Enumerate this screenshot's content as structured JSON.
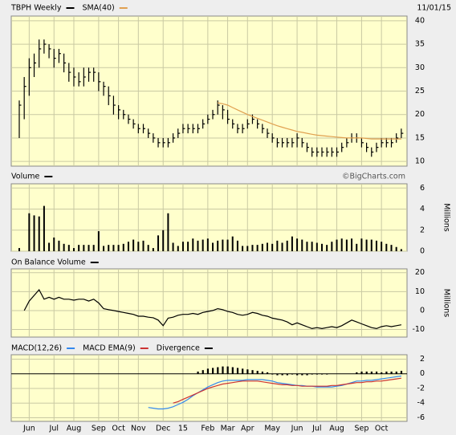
{
  "chart_data": [
    {
      "type": "ohlc",
      "date": "11/01/15",
      "ylim": [
        9,
        41
      ],
      "yticks": [
        10,
        15,
        20,
        25,
        30,
        35,
        40
      ],
      "series": [
        {
          "name": "TBPH Weekly",
          "color": "#000000",
          "high": [
            23,
            28,
            32,
            33,
            36,
            36,
            35,
            34,
            34,
            33,
            31,
            30,
            29,
            30,
            30,
            30,
            29,
            27,
            26,
            24,
            22,
            21,
            20,
            19,
            18,
            18,
            17,
            16,
            15,
            15,
            15,
            16,
            17,
            18,
            18,
            18,
            18,
            19,
            20,
            21,
            23,
            22,
            21,
            19,
            18,
            18,
            19,
            20,
            19,
            18,
            17,
            16,
            15,
            15,
            15,
            15,
            16,
            15,
            14,
            13,
            13,
            13,
            13,
            13,
            13,
            14,
            15,
            16,
            16,
            15,
            14,
            13,
            14,
            15,
            15,
            15,
            16,
            17
          ],
          "low": [
            15,
            19,
            24,
            28,
            30,
            33,
            32,
            30,
            31,
            29,
            27,
            26,
            26,
            26,
            27,
            27,
            25,
            24,
            22,
            20,
            19,
            19,
            18,
            17,
            16,
            16,
            15,
            14,
            13,
            13,
            13,
            14,
            15,
            16,
            16,
            16,
            16,
            17,
            18,
            19,
            20,
            19,
            18,
            17,
            16,
            16,
            17,
            18,
            17,
            16,
            15,
            14,
            13,
            13,
            13,
            13,
            13,
            13,
            12,
            11,
            11,
            11,
            11,
            11,
            11,
            12,
            13,
            14,
            14,
            13,
            12,
            11,
            12,
            13,
            13,
            13,
            14,
            15
          ],
          "close": [
            22,
            26,
            30,
            31,
            34,
            35,
            34,
            32,
            33,
            31,
            29,
            28,
            27,
            28,
            29,
            29,
            27,
            26,
            24,
            22,
            21,
            20,
            19,
            18,
            17,
            17,
            16,
            15,
            14,
            14,
            14,
            15,
            16,
            17,
            17,
            17,
            17,
            18,
            19,
            20,
            22,
            21,
            19,
            18,
            17,
            17,
            18,
            19,
            18,
            17,
            16,
            15,
            14,
            14,
            14,
            14,
            15,
            14,
            13,
            12,
            12,
            12,
            12,
            12,
            12,
            13,
            14,
            15,
            15,
            14,
            13,
            12,
            13,
            14,
            14,
            14,
            15,
            16
          ]
        },
        {
          "name": "SMA(40)",
          "color": "#e0a050",
          "values": [
            null,
            null,
            null,
            null,
            null,
            null,
            null,
            null,
            null,
            null,
            null,
            null,
            null,
            null,
            null,
            null,
            null,
            null,
            null,
            null,
            null,
            null,
            null,
            null,
            null,
            null,
            null,
            null,
            null,
            null,
            null,
            null,
            null,
            null,
            null,
            null,
            null,
            null,
            null,
            null,
            22.5,
            22.3,
            22,
            21.5,
            21,
            20.5,
            20,
            19.6,
            19.2,
            18.8,
            18.4,
            18,
            17.6,
            17.3,
            17,
            16.7,
            16.4,
            16.2,
            16,
            15.8,
            15.6,
            15.5,
            15.4,
            15.3,
            15.2,
            15.1,
            15,
            15,
            15,
            15,
            14.9,
            14.8,
            14.8,
            14.8,
            14.8,
            14.8,
            14.8,
            14.8
          ]
        }
      ]
    },
    {
      "type": "bar",
      "title": "Volume",
      "y_label": "Millions",
      "watermark": "©BigCharts.com",
      "color": "#000000",
      "ylim": [
        0,
        6.4
      ],
      "yticks": [
        0,
        2,
        4,
        6
      ],
      "values": [
        0.3,
        0,
        3.6,
        3.4,
        3.3,
        4.3,
        0.8,
        1.3,
        1,
        0.7,
        0.6,
        0.3,
        0.6,
        0.6,
        0.6,
        0.6,
        1.9,
        0.5,
        0.6,
        0.6,
        0.6,
        0.7,
        0.9,
        1.1,
        0.9,
        1,
        0.6,
        0.3,
        1.5,
        2,
        3.6,
        0.8,
        0.5,
        0.9,
        0.9,
        1.2,
        1,
        1.1,
        1.2,
        0.8,
        1,
        1.1,
        1.1,
        1.4,
        1,
        0.5,
        0.5,
        0.6,
        0.6,
        0.7,
        0.8,
        0.7,
        1,
        0.8,
        1,
        1.4,
        1.2,
        1.1,
        0.9,
        0.9,
        0.8,
        0.7,
        0.6,
        0.9,
        1.1,
        1.2,
        1.1,
        1.2,
        0.7,
        1.2,
        1.1,
        1.1,
        1,
        0.9,
        0.7,
        0.6,
        0.4,
        0.2
      ]
    },
    {
      "type": "line",
      "title": "On Balance Volume",
      "y_label": "Millions",
      "color": "#000000",
      "ylim": [
        -14,
        22
      ],
      "yticks": [
        -10,
        0,
        10,
        20
      ],
      "values": [
        null,
        0,
        5,
        8,
        11,
        6,
        7,
        6,
        7,
        6,
        6,
        5.5,
        6,
        6,
        5,
        6,
        4,
        1,
        0.5,
        0,
        -0.5,
        -1,
        -1.5,
        -2,
        -3,
        -3,
        -3.5,
        -3.8,
        -5,
        -8,
        -4,
        -3.5,
        -2.5,
        -2,
        -2,
        -1.5,
        -2,
        -1,
        -0.5,
        0,
        1,
        0.5,
        -0.5,
        -1,
        -2,
        -2.5,
        -2,
        -1,
        -1.5,
        -2.5,
        -3,
        -4,
        -4.5,
        -5,
        -6,
        -7.5,
        -6.5,
        -7.5,
        -8.5,
        -9.5,
        -9,
        -9.5,
        -9,
        -8.5,
        -9,
        -8,
        -6.5,
        -5,
        -6,
        -7,
        -8,
        -9,
        -9.5,
        -8.5,
        -8,
        -8.5,
        -8,
        -7.5
      ]
    },
    {
      "type": "macd",
      "ylim": [
        -6.5,
        2.6
      ],
      "yticks": [
        -6,
        -4,
        -2,
        0,
        2
      ],
      "xticks": [
        {
          "value": 2,
          "label": "Jun"
        },
        {
          "value": 7,
          "label": "Jul"
        },
        {
          "value": 11,
          "label": "Aug"
        },
        {
          "value": 16,
          "label": "Sep"
        },
        {
          "value": 20,
          "label": "Oct"
        },
        {
          "value": 24,
          "label": "Nov"
        },
        {
          "value": 29,
          "label": "Dec"
        },
        {
          "value": 33,
          "label": "15"
        },
        {
          "value": 38,
          "label": "Feb"
        },
        {
          "value": 42,
          "label": "Mar"
        },
        {
          "value": 46,
          "label": "Apr"
        },
        {
          "value": 51,
          "label": "May"
        },
        {
          "value": 56,
          "label": "Jun"
        },
        {
          "value": 60,
          "label": "Jul"
        },
        {
          "value": 64,
          "label": "Aug"
        },
        {
          "value": 69,
          "label": "Sep"
        },
        {
          "value": 73,
          "label": "Oct"
        }
      ],
      "series": [
        {
          "name": "MACD(12,26)",
          "color": "#3388ee",
          "values": [
            null,
            null,
            null,
            null,
            null,
            null,
            null,
            null,
            null,
            null,
            null,
            null,
            null,
            null,
            null,
            null,
            null,
            null,
            null,
            null,
            null,
            null,
            null,
            null,
            null,
            null,
            -4.6,
            -4.7,
            -4.8,
            -4.8,
            -4.7,
            -4.5,
            -4.2,
            -3.9,
            -3.5,
            -3.0,
            -2.6,
            -2.2,
            -1.8,
            -1.5,
            -1.2,
            -1.0,
            -0.9,
            -0.9,
            -0.9,
            -0.9,
            -0.8,
            -0.8,
            -0.8,
            -0.8,
            -0.9,
            -1.0,
            -1.2,
            -1.3,
            -1.4,
            -1.5,
            -1.6,
            -1.6,
            -1.7,
            -1.7,
            -1.8,
            -1.8,
            -1.8,
            -1.8,
            -1.7,
            -1.6,
            -1.4,
            -1.2,
            -1.0,
            -1.0,
            -0.9,
            -0.9,
            -0.8,
            -0.7,
            -0.6,
            -0.5,
            -0.4,
            -0.3
          ]
        },
        {
          "name": "MACD EMA(9)",
          "color": "#cc3333",
          "values": [
            null,
            null,
            null,
            null,
            null,
            null,
            null,
            null,
            null,
            null,
            null,
            null,
            null,
            null,
            null,
            null,
            null,
            null,
            null,
            null,
            null,
            null,
            null,
            null,
            null,
            null,
            null,
            null,
            null,
            null,
            null,
            -4.0,
            -3.8,
            -3.5,
            -3.2,
            -2.9,
            -2.6,
            -2.3,
            -2.0,
            -1.8,
            -1.6,
            -1.4,
            -1.3,
            -1.2,
            -1.1,
            -1.0,
            -1.0,
            -1.0,
            -1.0,
            -1.1,
            -1.2,
            -1.3,
            -1.4,
            -1.5,
            -1.5,
            -1.6,
            -1.6,
            -1.7,
            -1.7,
            -1.7,
            -1.7,
            -1.7,
            -1.7,
            -1.6,
            -1.6,
            -1.5,
            -1.4,
            -1.3,
            -1.2,
            -1.2,
            -1.1,
            -1.1,
            -1.0,
            -1.0,
            -0.9,
            -0.8,
            -0.7,
            -0.6
          ]
        },
        {
          "name": "Divergence",
          "color": "#000000",
          "values": [
            null,
            null,
            null,
            null,
            null,
            null,
            null,
            null,
            null,
            null,
            null,
            null,
            null,
            null,
            null,
            null,
            null,
            null,
            null,
            null,
            null,
            null,
            null,
            null,
            null,
            null,
            null,
            null,
            null,
            null,
            null,
            null,
            null,
            null,
            null,
            null,
            0.3,
            0.5,
            0.7,
            0.8,
            0.9,
            1.0,
            1.0,
            0.9,
            0.8,
            0.7,
            0.6,
            0.5,
            0.4,
            0.3,
            0.2,
            -0.1,
            -0.2,
            -0.2,
            -0.2,
            -0.1,
            -0.2,
            -0.2,
            -0.2,
            -0.1,
            -0.1,
            -0.1,
            -0.1,
            null,
            null,
            null,
            null,
            null,
            0.2,
            0.3,
            0.3,
            0.3,
            0.3,
            0.2,
            0.3,
            0.3,
            0.3,
            0.4
          ]
        }
      ]
    }
  ]
}
